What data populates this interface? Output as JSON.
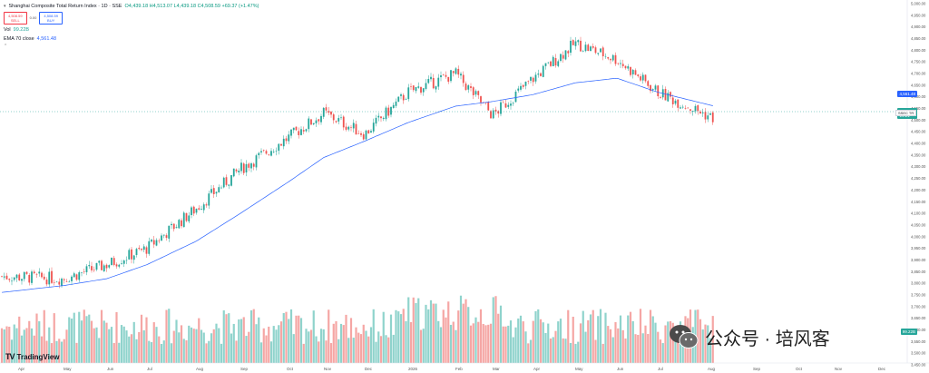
{
  "legend": {
    "symbol": "Shanghai Composite Total Return Index · 1D · SSE",
    "ohlc": "O4,439.18 H4,513.07 L4,439.18 C4,508.59 +69.37 (+1.47%)",
    "sell_price": "4,508.59",
    "sell_label": "SELL",
    "spread": "0.00",
    "buy_price": "4,508.59",
    "buy_label": "BUY",
    "indicator_1_name": "Vol",
    "indicator_1_value": "99.22B",
    "indicator_2_name": "EMA 70 close",
    "indicator_2_value": "4,561.48",
    "collapse_icon": "chevron-up-icon"
  },
  "price_tags": {
    "ema": "4,561.48",
    "close": "4,508.59",
    "close_time": "14:21",
    "symbol_badge": "SSEC TR",
    "volume": "99.22B"
  },
  "branding": {
    "tradingview_logo": "TradingView",
    "watermark": "公众号 · 培风客"
  },
  "colors": {
    "up": "#26a69a",
    "down": "#ef5350",
    "up_volume": "#8fd3cc",
    "down_volume": "#f5a6a4",
    "ema": "#2962ff",
    "background": "#ffffff"
  },
  "chart_data": {
    "type": "candlestick",
    "title": "Shanghai Composite Total Return Index · 1D · SSE",
    "y_axis_range": [
      3450,
      5000
    ],
    "y_axis_labels": [
      "5,000.00",
      "4,950.00",
      "4,900.00",
      "4,850.00",
      "4,800.00",
      "4,750.00",
      "4,700.00",
      "4,650.00",
      "4,600.00",
      "4,550.00",
      "4,500.00",
      "4,450.00",
      "4,400.00",
      "4,350.00",
      "4,300.00",
      "4,250.00",
      "4,200.00",
      "4,150.00",
      "4,100.00",
      "4,050.00",
      "4,000.00",
      "3,950.00",
      "3,900.00",
      "3,850.00",
      "3,800.00",
      "3,750.00",
      "3,700.00",
      "3,650.00",
      "3,600.00",
      "3,550.00",
      "3,500.00",
      "3,450.00"
    ],
    "x_axis_labels": [
      "Apr",
      "May",
      "Jun",
      "Jul",
      "Aug",
      "Sep",
      "Oct",
      "Nov",
      "Dec",
      "2026",
      "Feb",
      "Mar",
      "Apr",
      "May",
      "Jun",
      "Jul",
      "Aug",
      "Sep",
      "Oct",
      "Nov",
      "Dec"
    ],
    "series": [
      {
        "name": "Close (approx.)",
        "x": [
          "Apr",
          "May",
          "Jun",
          "Jul",
          "Aug",
          "Sep",
          "Oct",
          "Nov",
          "Dec",
          "2026",
          "Feb",
          "Mar",
          "Apr",
          "May",
          "Jun",
          "Jul",
          "Aug"
        ],
        "values": [
          3830,
          3820,
          3880,
          3950,
          4120,
          4290,
          4420,
          4530,
          4440,
          4620,
          4700,
          4520,
          4680,
          4830,
          4760,
          4620,
          4508.59
        ]
      },
      {
        "name": "EMA 70 close",
        "x": [
          "Apr",
          "May",
          "Jun",
          "Jul",
          "Aug",
          "Sep",
          "Oct",
          "Nov",
          "Dec",
          "2026",
          "Feb",
          "Mar",
          "Apr",
          "May",
          "Jun",
          "Jul",
          "Aug"
        ],
        "values": [
          3760,
          3790,
          3820,
          3880,
          3980,
          4100,
          4230,
          4340,
          4410,
          4490,
          4560,
          4580,
          4610,
          4660,
          4680,
          4620,
          4561.48
        ]
      }
    ],
    "last_close": 4508.59,
    "ema_last": 4561.48,
    "volume_last": "99.22B",
    "grid": true
  }
}
